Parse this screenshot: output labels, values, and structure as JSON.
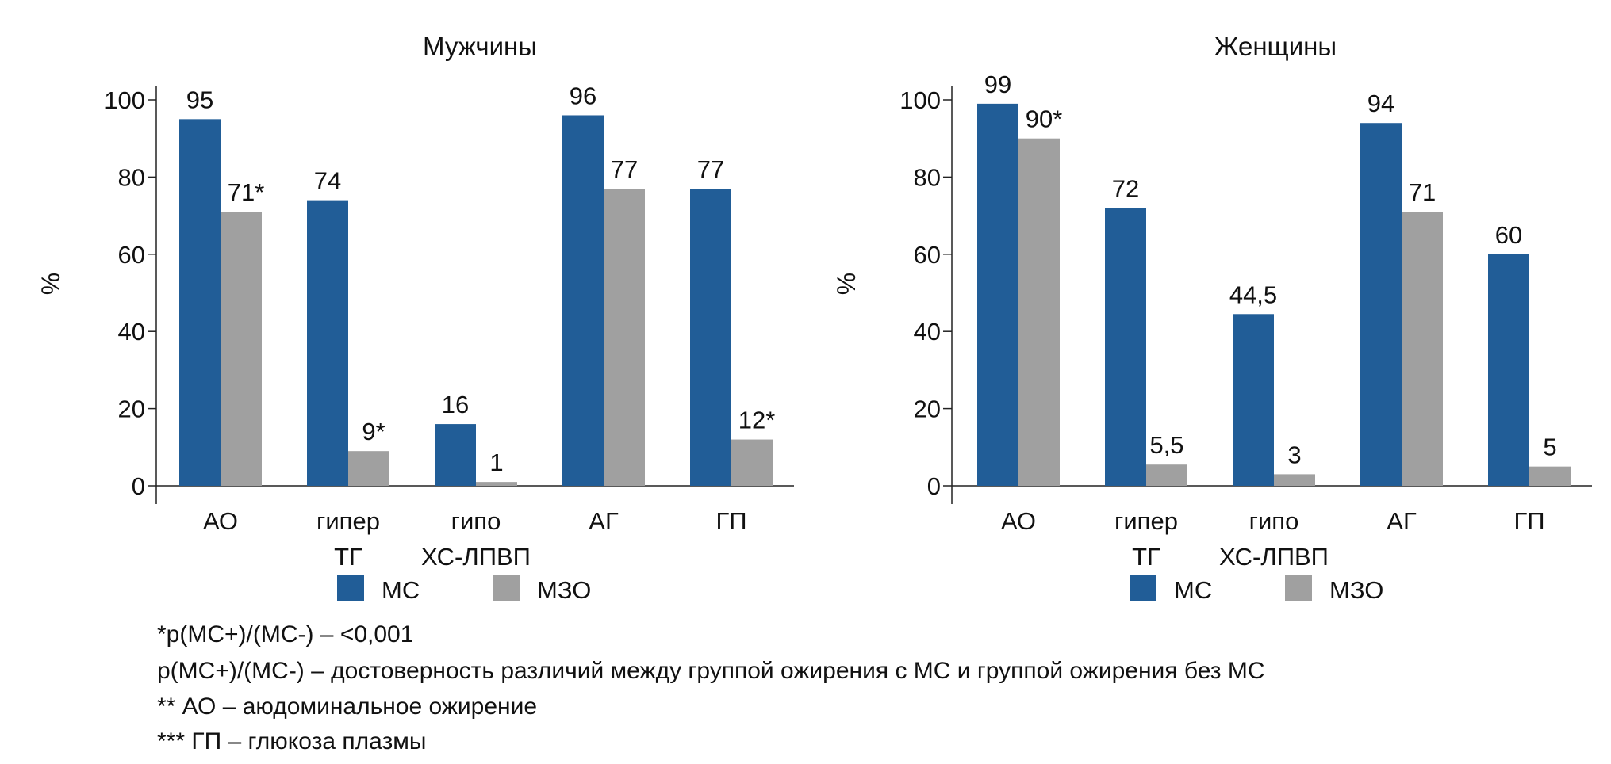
{
  "colors": {
    "series_mc": "#215d97",
    "series_mzo": "#a0a0a0"
  },
  "chart_data": [
    {
      "type": "bar",
      "title": "Мужчины",
      "ylabel": "%",
      "ylim": [
        0,
        100
      ],
      "yticks": [
        "0",
        "20",
        "40",
        "60",
        "80",
        "100"
      ],
      "categories": [
        [
          "АО"
        ],
        [
          "гипер",
          "ТГ"
        ],
        [
          "гипо",
          "ХС-ЛПВП"
        ],
        [
          "АГ"
        ],
        [
          "ГП"
        ]
      ],
      "series": [
        {
          "name": "МС",
          "values": [
            95,
            74,
            16,
            96,
            77
          ],
          "labels": [
            "95",
            "74",
            "16",
            "96",
            "77"
          ]
        },
        {
          "name": "МЗО",
          "values": [
            71,
            9,
            1,
            77,
            12
          ],
          "labels": [
            "71*",
            "9*",
            "1",
            "77",
            "12*"
          ]
        }
      ],
      "legend": "bottom"
    },
    {
      "type": "bar",
      "title": "Женщины",
      "ylabel": "%",
      "ylim": [
        0,
        100
      ],
      "yticks": [
        "0",
        "20",
        "40",
        "60",
        "80",
        "100"
      ],
      "categories": [
        [
          "АО"
        ],
        [
          "гипер",
          "ТГ"
        ],
        [
          "гипо",
          "ХС-ЛПВП"
        ],
        [
          "АГ"
        ],
        [
          "ГП"
        ]
      ],
      "series": [
        {
          "name": "МС",
          "values": [
            99,
            72,
            44.5,
            94,
            60
          ],
          "labels": [
            "99",
            "72",
            "44,5",
            "94",
            "60"
          ]
        },
        {
          "name": "МЗО",
          "values": [
            90,
            5.5,
            3,
            71,
            5
          ],
          "labels": [
            "90*",
            "5,5",
            "3",
            "71",
            "5"
          ]
        }
      ],
      "legend": "bottom"
    }
  ],
  "footnotes": [
    "*p(МС+)/(МС-) – <0,001",
    "p(МС+)/(МС-) – достоверность различий между группой ожирения с МС и группой ожирения без МС",
    "** АО – аюдоминальное ожирение",
    "*** ГП – глюкоза плазмы"
  ]
}
